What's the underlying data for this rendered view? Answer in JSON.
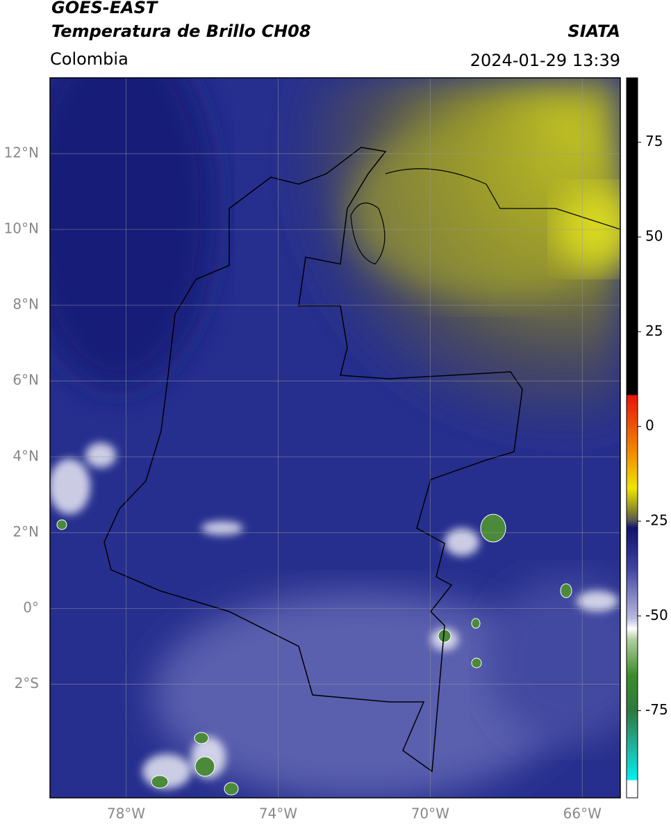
{
  "header": {
    "title": "GOES-EAST",
    "subtitle": "Temperatura de Brillo CH08",
    "region": "Colombia",
    "agency": "SIATA",
    "datetime": "2024-01-29 13:39"
  },
  "map": {
    "lat_lim": [
      -5,
      14
    ],
    "lon_lim": [
      -80,
      -65
    ],
    "lat_ticks": [
      {
        "value": 12,
        "label": "12°N"
      },
      {
        "value": 10,
        "label": "10°N"
      },
      {
        "value": 8,
        "label": "8°N"
      },
      {
        "value": 6,
        "label": "6°N"
      },
      {
        "value": 4,
        "label": "4°N"
      },
      {
        "value": 2,
        "label": "2°N"
      },
      {
        "value": 0,
        "label": "0°"
      },
      {
        "value": -2,
        "label": "2°S"
      }
    ],
    "lon_ticks": [
      {
        "value": -78,
        "label": "78°W"
      },
      {
        "value": -74,
        "label": "74°W"
      },
      {
        "value": -70,
        "label": "70°W"
      },
      {
        "value": -66,
        "label": "66°W"
      }
    ]
  },
  "colorbar": {
    "lim": [
      -98,
      92
    ],
    "ticks": [
      75,
      50,
      25,
      0,
      -25,
      -50,
      -75
    ]
  }
}
